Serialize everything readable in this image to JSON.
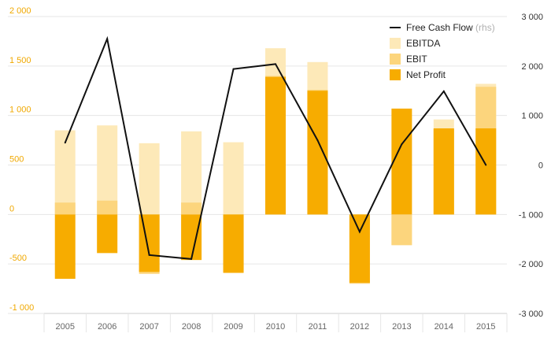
{
  "chart_data": {
    "type": "bar",
    "title": "",
    "categories": [
      "2005",
      "2006",
      "2007",
      "2008",
      "2009",
      "2010",
      "2011",
      "2012",
      "2013",
      "2014",
      "2015"
    ],
    "series": [
      {
        "name": "EBITDA",
        "kind": "bar",
        "axis": "left",
        "color": "#fde9b8",
        "values": [
          850,
          900,
          720,
          840,
          730,
          1680,
          1540,
          -230,
          -310,
          960,
          1320
        ]
      },
      {
        "name": "EBIT",
        "kind": "bar",
        "axis": "left",
        "color": "#fcd57d",
        "values": [
          120,
          140,
          -600,
          120,
          -560,
          1400,
          1260,
          -700,
          -310,
          860,
          1290
        ]
      },
      {
        "name": "Net Profit",
        "kind": "bar",
        "axis": "left",
        "color": "#f7ac00",
        "values": [
          -650,
          -390,
          -580,
          -460,
          -590,
          1390,
          1250,
          -690,
          1070,
          870,
          870
        ]
      },
      {
        "name": "Free Cash Flow",
        "kind": "line",
        "axis": "right",
        "color": "#111111",
        "values": [
          450,
          2550,
          -1820,
          -1900,
          1940,
          2040,
          500,
          -1350,
          420,
          1490,
          0
        ]
      }
    ],
    "legend_suffix": "(rhs)",
    "legend_position": "top-right",
    "y_left": {
      "ylim": [
        -1000,
        2000
      ],
      "ticks": [
        "2 000",
        "1 500",
        "1 000",
        "500",
        "0",
        "-500",
        "-1 000"
      ],
      "values": [
        2000,
        1500,
        1000,
        500,
        0,
        -500,
        -1000
      ]
    },
    "y_right": {
      "ylim": [
        -3000,
        3000
      ],
      "ticks": [
        "3 000",
        "2 000",
        "1 000",
        "0",
        "-1 000",
        "-2 000",
        "-3 000"
      ],
      "values": [
        3000,
        2000,
        1000,
        0,
        -1000,
        -2000,
        -3000
      ]
    },
    "colors": {
      "grid": "#e6e6e6",
      "left_tick": "#f0a800",
      "right_tick": "#333333",
      "axis": "#cccccc"
    }
  }
}
